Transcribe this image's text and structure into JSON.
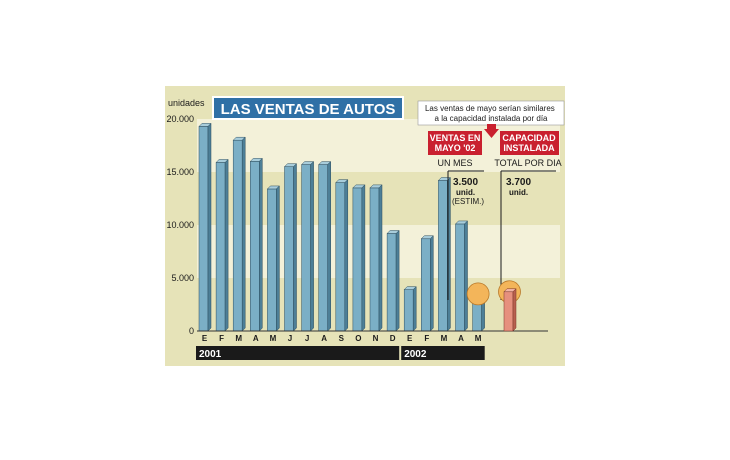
{
  "chart_data": {
    "type": "bar",
    "title": "LAS VENTAS DE AUTOS",
    "ylabel": "unidades",
    "ylim": [
      0,
      20000
    ],
    "yticks": [
      "0",
      "5.000",
      "10.000",
      "15.000",
      "20.000"
    ],
    "grid": "horizontal bands",
    "categories": [
      "E",
      "F",
      "M",
      "A",
      "M",
      "J",
      "J",
      "A",
      "S",
      "O",
      "N",
      "D",
      "E",
      "F",
      "M",
      "A",
      "M"
    ],
    "values": [
      19300,
      15900,
      18000,
      16000,
      13400,
      15500,
      15700,
      15700,
      14000,
      13500,
      13500,
      9200,
      3900,
      8700,
      14200,
      10100,
      3500
    ],
    "years": [
      {
        "label": "2001",
        "months": 12
      },
      {
        "label": "2002",
        "months": 5
      }
    ],
    "capacity_value": 3700,
    "note": "Las ventas de mayo serían similares a la capacidad instalada por día",
    "boxes": [
      {
        "title_lines": [
          "VENTAS EN",
          "MAYO '02"
        ],
        "subtitle": "UN MES",
        "value": "3.500",
        "unit": "unid.",
        "extra": "(ESTIM.)"
      },
      {
        "title_lines": [
          "CAPACIDAD",
          "INSTALADA"
        ],
        "subtitle": "TOTAL POR DIA",
        "value": "3.700",
        "unit": "unid.",
        "extra": ""
      }
    ],
    "colors": {
      "panel": "#e6e3b8",
      "band": "#f3f1d9",
      "bar": "#7bafc6",
      "bar_top": "#a8cddb",
      "bar_side": "#4d7f97",
      "highlight_bar": "#e6907e",
      "highlight_circle": "#f3b55a",
      "title_bg": "#2f70a6",
      "label_red": "#c9202f",
      "dark": "#1a1a1a"
    }
  }
}
